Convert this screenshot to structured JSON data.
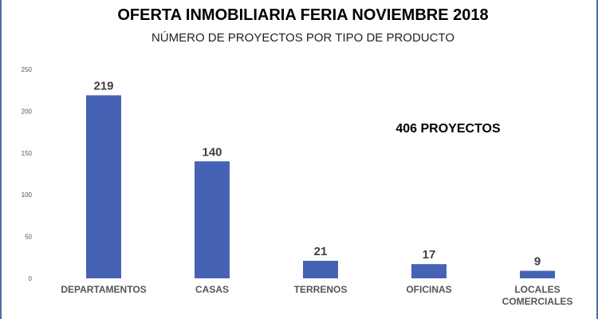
{
  "chart_data": {
    "type": "bar",
    "title": "OFERTA INMOBILIARIA FERIA NOVIEMBRE 2018",
    "subtitle": "NÚMERO DE PROYECTOS POR TIPO DE PRODUCTO",
    "categories": [
      "DEPARTAMENTOS",
      "CASAS",
      "TERRENOS",
      "OFICINAS",
      "LOCALES COMERCIALES"
    ],
    "values": [
      219,
      140,
      21,
      17,
      9
    ],
    "ylim": [
      0,
      250
    ],
    "yticks": [
      0,
      50,
      100,
      150,
      200,
      250
    ],
    "grid": false,
    "legend": "none",
    "annotation": "406 PROYECTOS",
    "bar_color": "#4662b4"
  }
}
